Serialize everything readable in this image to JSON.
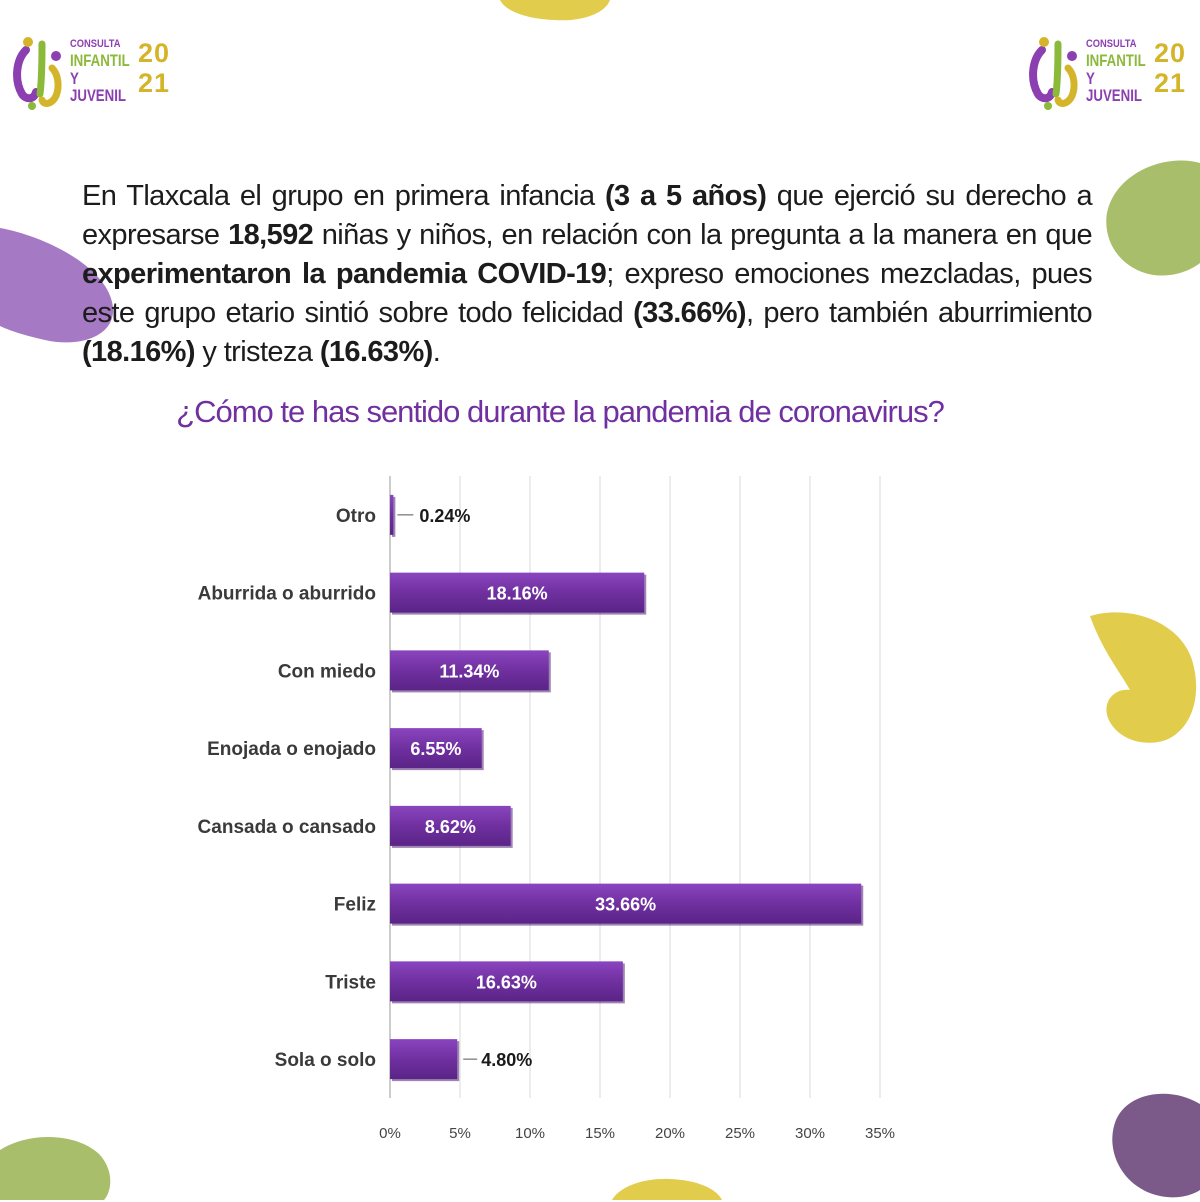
{
  "logo": {
    "line1": "CONSULTA",
    "line2": "INFANTIL",
    "line3": "Y JUVENIL",
    "year_top": "20",
    "year_bottom": "21"
  },
  "intro": {
    "p1": "En Tlaxcala el grupo en primera infancia ",
    "b1": "(3 a 5 años)",
    "p2": " que ejerció su derecho a expresarse ",
    "b2": "18,592",
    "p3": " niñas y niños, en relación con la pregunta a la manera en que ",
    "b3": "experimentaron la pandemia COVID-19",
    "p4": "; expreso emociones mezcladas, pues este grupo etario sintió sobre todo felicidad ",
    "b4": "(33.66%)",
    "p5": ", pero también aburrimiento ",
    "b5": "(18.16%)",
    "p6": " y tristeza ",
    "b6": "(16.63%)",
    "p7": "."
  },
  "colors": {
    "bar": "#7030a0",
    "bar_dark": "#4e1e75",
    "title": "#7030a0",
    "grid": "#d9d9d9",
    "blob_green": "#a8be6a",
    "blob_yellow": "#e2cc4c",
    "blob_purple": "#a679c4",
    "blob_dark_purple": "#7b5a8a"
  },
  "chart_data": {
    "type": "bar",
    "orientation": "horizontal",
    "title": "¿Cómo te has sentido durante la pandemia de coronavirus?",
    "categories": [
      "Otro",
      "Aburrida o aburrido",
      "Con miedo",
      "Enojada o enojado",
      "Cansada o cansado",
      "Feliz",
      "Triste",
      "Sola o solo"
    ],
    "values": [
      0.24,
      18.16,
      11.34,
      6.55,
      8.62,
      33.66,
      16.63,
      4.8
    ],
    "value_labels": [
      "0.24%",
      "18.16%",
      "11.34%",
      "6.55%",
      "8.62%",
      "33.66%",
      "16.63%",
      "4.80%"
    ],
    "xlim": [
      0,
      35
    ],
    "x_ticks": [
      0,
      5,
      10,
      15,
      20,
      25,
      30,
      35
    ],
    "x_tick_labels": [
      "0%",
      "5%",
      "10%",
      "15%",
      "20%",
      "25%",
      "30%",
      "35%"
    ],
    "grid": true,
    "legend": "none"
  }
}
